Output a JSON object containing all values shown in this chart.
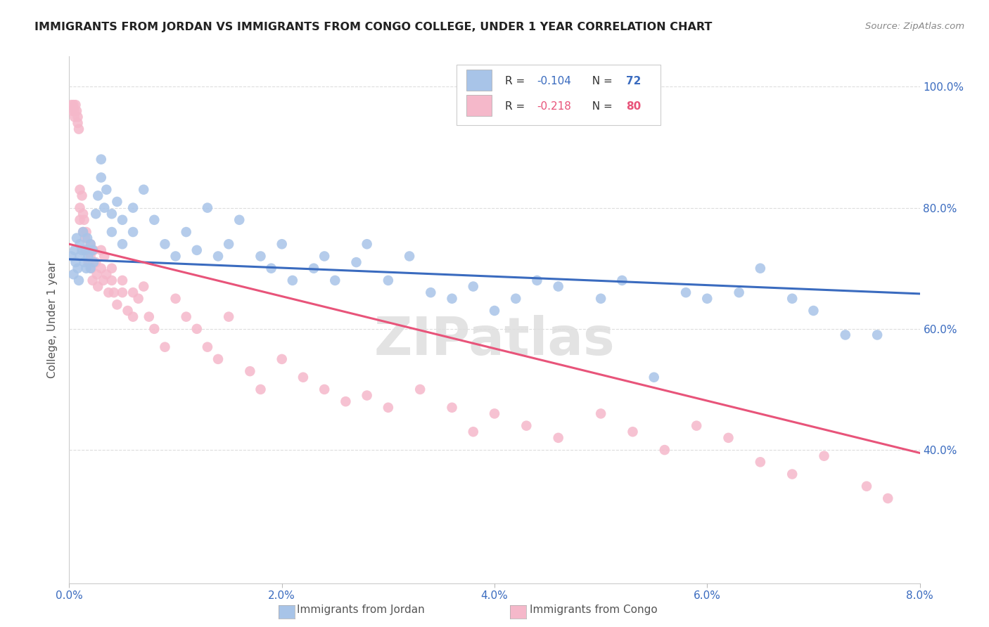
{
  "title": "IMMIGRANTS FROM JORDAN VS IMMIGRANTS FROM CONGO COLLEGE, UNDER 1 YEAR CORRELATION CHART",
  "source": "Source: ZipAtlas.com",
  "ylabel": "College, Under 1 year",
  "jordan_R": -0.104,
  "jordan_N": 72,
  "congo_R": -0.218,
  "congo_N": 80,
  "jordan_color": "#a8c4e8",
  "congo_color": "#f5b8ca",
  "jordan_line_color": "#3a6bbf",
  "congo_line_color": "#e8547a",
  "text_color": "#3a6bbf",
  "background_color": "#ffffff",
  "grid_color": "#dddddd",
  "title_color": "#222222",
  "watermark": "ZIPatlas",
  "xlim": [
    0.0,
    0.08
  ],
  "ylim": [
    0.18,
    1.05
  ],
  "x_ticks": [
    0.0,
    0.02,
    0.04,
    0.06,
    0.08
  ],
  "y_ticks": [
    0.4,
    0.6,
    0.8,
    1.0
  ],
  "jordan_x": [
    0.0002,
    0.0004,
    0.0005,
    0.0006,
    0.0007,
    0.0008,
    0.0009,
    0.001,
    0.001,
    0.0012,
    0.0013,
    0.0014,
    0.0015,
    0.0016,
    0.0017,
    0.0018,
    0.002,
    0.002,
    0.0022,
    0.0023,
    0.0025,
    0.0027,
    0.003,
    0.003,
    0.0033,
    0.0035,
    0.004,
    0.004,
    0.0045,
    0.005,
    0.005,
    0.006,
    0.006,
    0.007,
    0.008,
    0.009,
    0.01,
    0.011,
    0.012,
    0.013,
    0.014,
    0.015,
    0.016,
    0.018,
    0.019,
    0.02,
    0.021,
    0.023,
    0.024,
    0.025,
    0.027,
    0.028,
    0.03,
    0.032,
    0.034,
    0.036,
    0.038,
    0.04,
    0.042,
    0.044,
    0.046,
    0.05,
    0.052,
    0.055,
    0.058,
    0.06,
    0.063,
    0.065,
    0.068,
    0.07,
    0.073,
    0.076
  ],
  "jordan_y": [
    0.72,
    0.69,
    0.73,
    0.71,
    0.75,
    0.7,
    0.68,
    0.74,
    0.72,
    0.73,
    0.76,
    0.71,
    0.73,
    0.7,
    0.75,
    0.72,
    0.74,
    0.7,
    0.73,
    0.71,
    0.79,
    0.82,
    0.88,
    0.85,
    0.8,
    0.83,
    0.79,
    0.76,
    0.81,
    0.78,
    0.74,
    0.8,
    0.76,
    0.83,
    0.78,
    0.74,
    0.72,
    0.76,
    0.73,
    0.8,
    0.72,
    0.74,
    0.78,
    0.72,
    0.7,
    0.74,
    0.68,
    0.7,
    0.72,
    0.68,
    0.71,
    0.74,
    0.68,
    0.72,
    0.66,
    0.65,
    0.67,
    0.63,
    0.65,
    0.68,
    0.67,
    0.65,
    0.68,
    0.52,
    0.66,
    0.65,
    0.66,
    0.7,
    0.65,
    0.63,
    0.59,
    0.59
  ],
  "congo_x": [
    0.0002,
    0.0003,
    0.0004,
    0.0005,
    0.0005,
    0.0006,
    0.0007,
    0.0008,
    0.0008,
    0.0009,
    0.001,
    0.001,
    0.001,
    0.0012,
    0.0013,
    0.0013,
    0.0014,
    0.0015,
    0.0015,
    0.0016,
    0.0017,
    0.0018,
    0.002,
    0.002,
    0.0021,
    0.0022,
    0.0023,
    0.0025,
    0.0026,
    0.0027,
    0.003,
    0.003,
    0.0032,
    0.0033,
    0.0035,
    0.0037,
    0.004,
    0.004,
    0.0042,
    0.0045,
    0.005,
    0.005,
    0.0055,
    0.006,
    0.006,
    0.0065,
    0.007,
    0.0075,
    0.008,
    0.009,
    0.01,
    0.011,
    0.012,
    0.013,
    0.014,
    0.015,
    0.017,
    0.018,
    0.02,
    0.022,
    0.024,
    0.026,
    0.028,
    0.03,
    0.033,
    0.036,
    0.038,
    0.04,
    0.043,
    0.046,
    0.05,
    0.053,
    0.056,
    0.059,
    0.062,
    0.065,
    0.068,
    0.071,
    0.075,
    0.077
  ],
  "congo_y": [
    0.97,
    0.96,
    0.97,
    0.96,
    0.95,
    0.97,
    0.96,
    0.95,
    0.94,
    0.93,
    0.83,
    0.8,
    0.78,
    0.82,
    0.79,
    0.76,
    0.78,
    0.75,
    0.73,
    0.76,
    0.73,
    0.71,
    0.74,
    0.72,
    0.7,
    0.68,
    0.73,
    0.71,
    0.69,
    0.67,
    0.73,
    0.7,
    0.68,
    0.72,
    0.69,
    0.66,
    0.7,
    0.68,
    0.66,
    0.64,
    0.68,
    0.66,
    0.63,
    0.66,
    0.62,
    0.65,
    0.67,
    0.62,
    0.6,
    0.57,
    0.65,
    0.62,
    0.6,
    0.57,
    0.55,
    0.62,
    0.53,
    0.5,
    0.55,
    0.52,
    0.5,
    0.48,
    0.49,
    0.47,
    0.5,
    0.47,
    0.43,
    0.46,
    0.44,
    0.42,
    0.46,
    0.43,
    0.4,
    0.44,
    0.42,
    0.38,
    0.36,
    0.39,
    0.34,
    0.32
  ]
}
